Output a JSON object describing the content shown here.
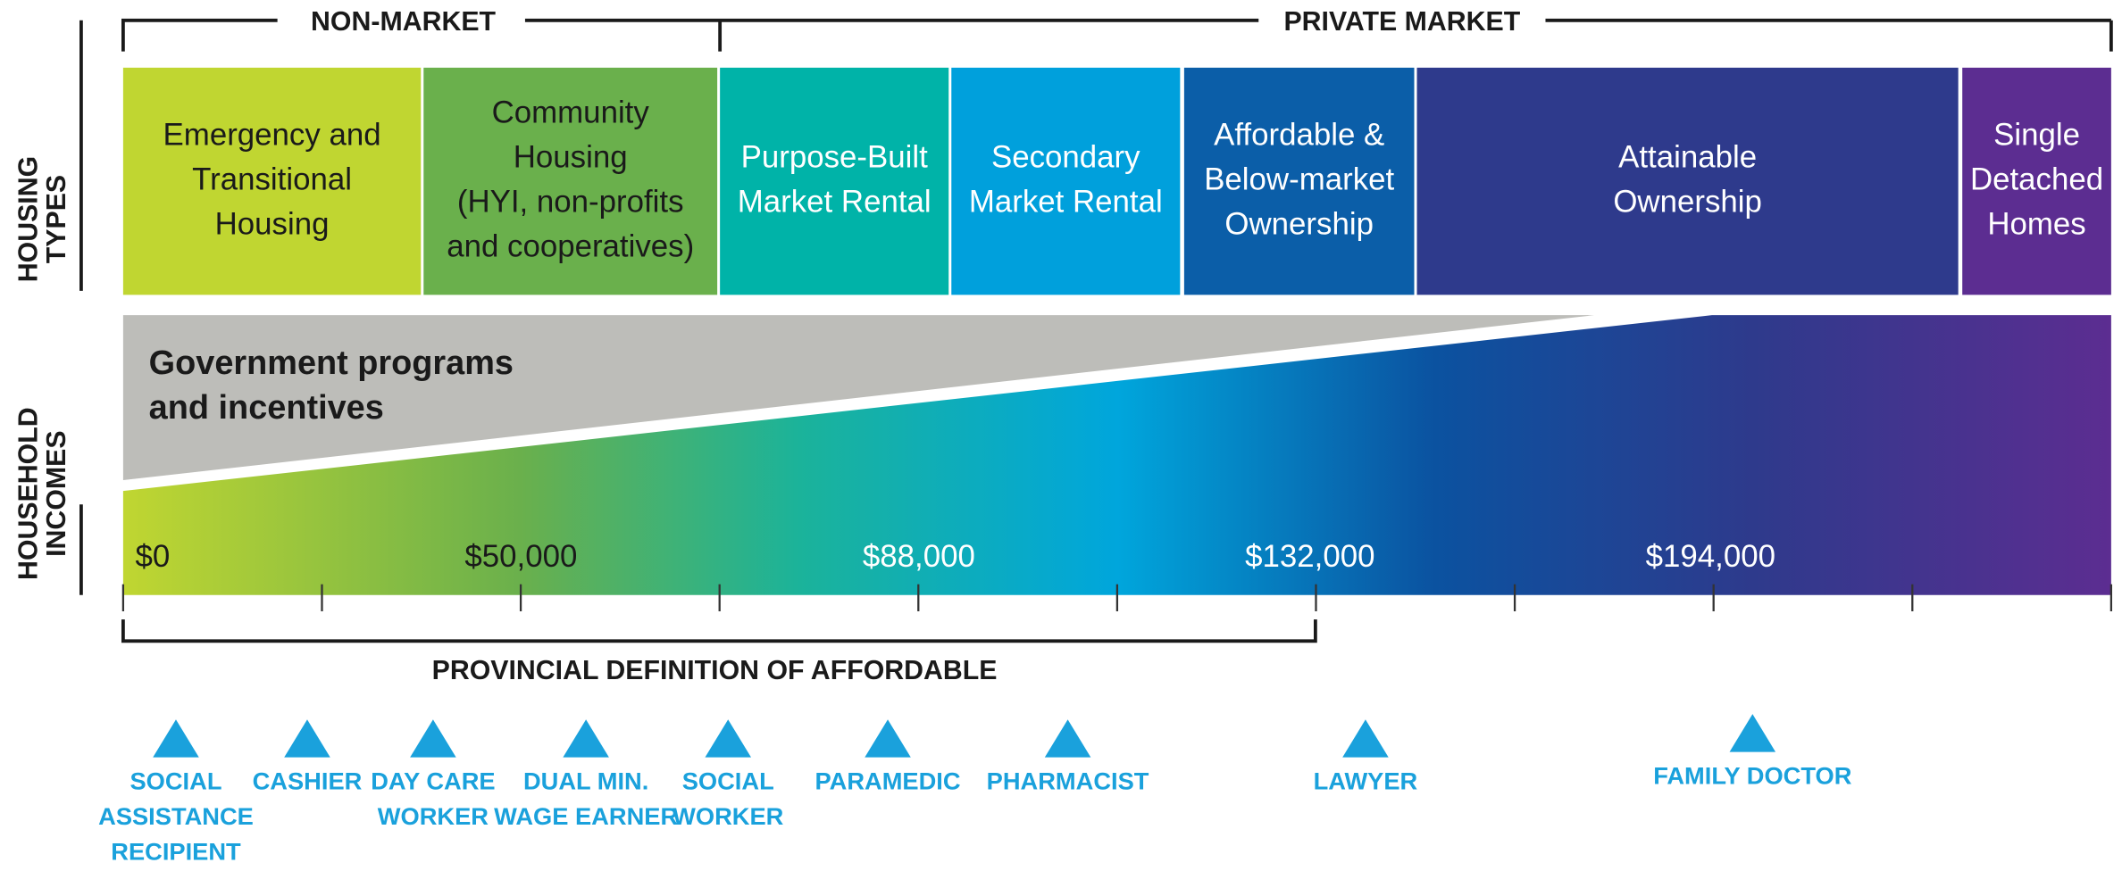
{
  "brackets": {
    "non_market": "NON-MARKET",
    "private_market": "PRIVATE MARKET"
  },
  "side_labels": {
    "housing_types": [
      "HOUSING",
      "TYPES"
    ],
    "household_incomes": [
      "HOUSEHOLD",
      "INCOMES"
    ]
  },
  "housing_types": [
    {
      "lines": [
        "Emergency and",
        "Transitional",
        "Housing"
      ],
      "color": "#c0d631"
    },
    {
      "lines": [
        "Community",
        "Housing",
        "(HYI, non-profits",
        "and cooperatives)"
      ],
      "color": "#6ab04c"
    },
    {
      "lines": [
        "Purpose-Built",
        "Market Rental"
      ],
      "color": "#00b3a8"
    },
    {
      "lines": [
        "Secondary",
        "Market Rental"
      ],
      "color": "#00a0dc"
    },
    {
      "lines": [
        "Affordable &",
        "Below-market",
        "Ownership"
      ],
      "color": "#0b5ea8"
    },
    {
      "lines": [
        "Attainable",
        "Ownership"
      ],
      "color": "#2e3a8c"
    },
    {
      "lines": [
        "Single",
        "Detached",
        "Homes"
      ],
      "color": "#5c2d91"
    }
  ],
  "government": [
    "Government programs",
    "and incentives"
  ],
  "incomes": [
    "$0",
    "$50,000",
    "$88,000",
    "$132,000",
    "$194,000"
  ],
  "affordable_label": "PROVINCIAL DEFINITION OF AFFORDABLE",
  "occupations": [
    [
      "SOCIAL",
      "ASSISTANCE",
      "RECIPIENT"
    ],
    [
      "CASHIER"
    ],
    [
      "DAY CARE",
      "WORKER"
    ],
    [
      "DUAL MIN.",
      "WAGE EARNER"
    ],
    [
      "SOCIAL",
      "WORKER"
    ],
    [
      "PARAMEDIC"
    ],
    [
      "PHARMACIST"
    ],
    [
      "LAWYER"
    ],
    [
      "FAMILY DOCTOR"
    ]
  ]
}
